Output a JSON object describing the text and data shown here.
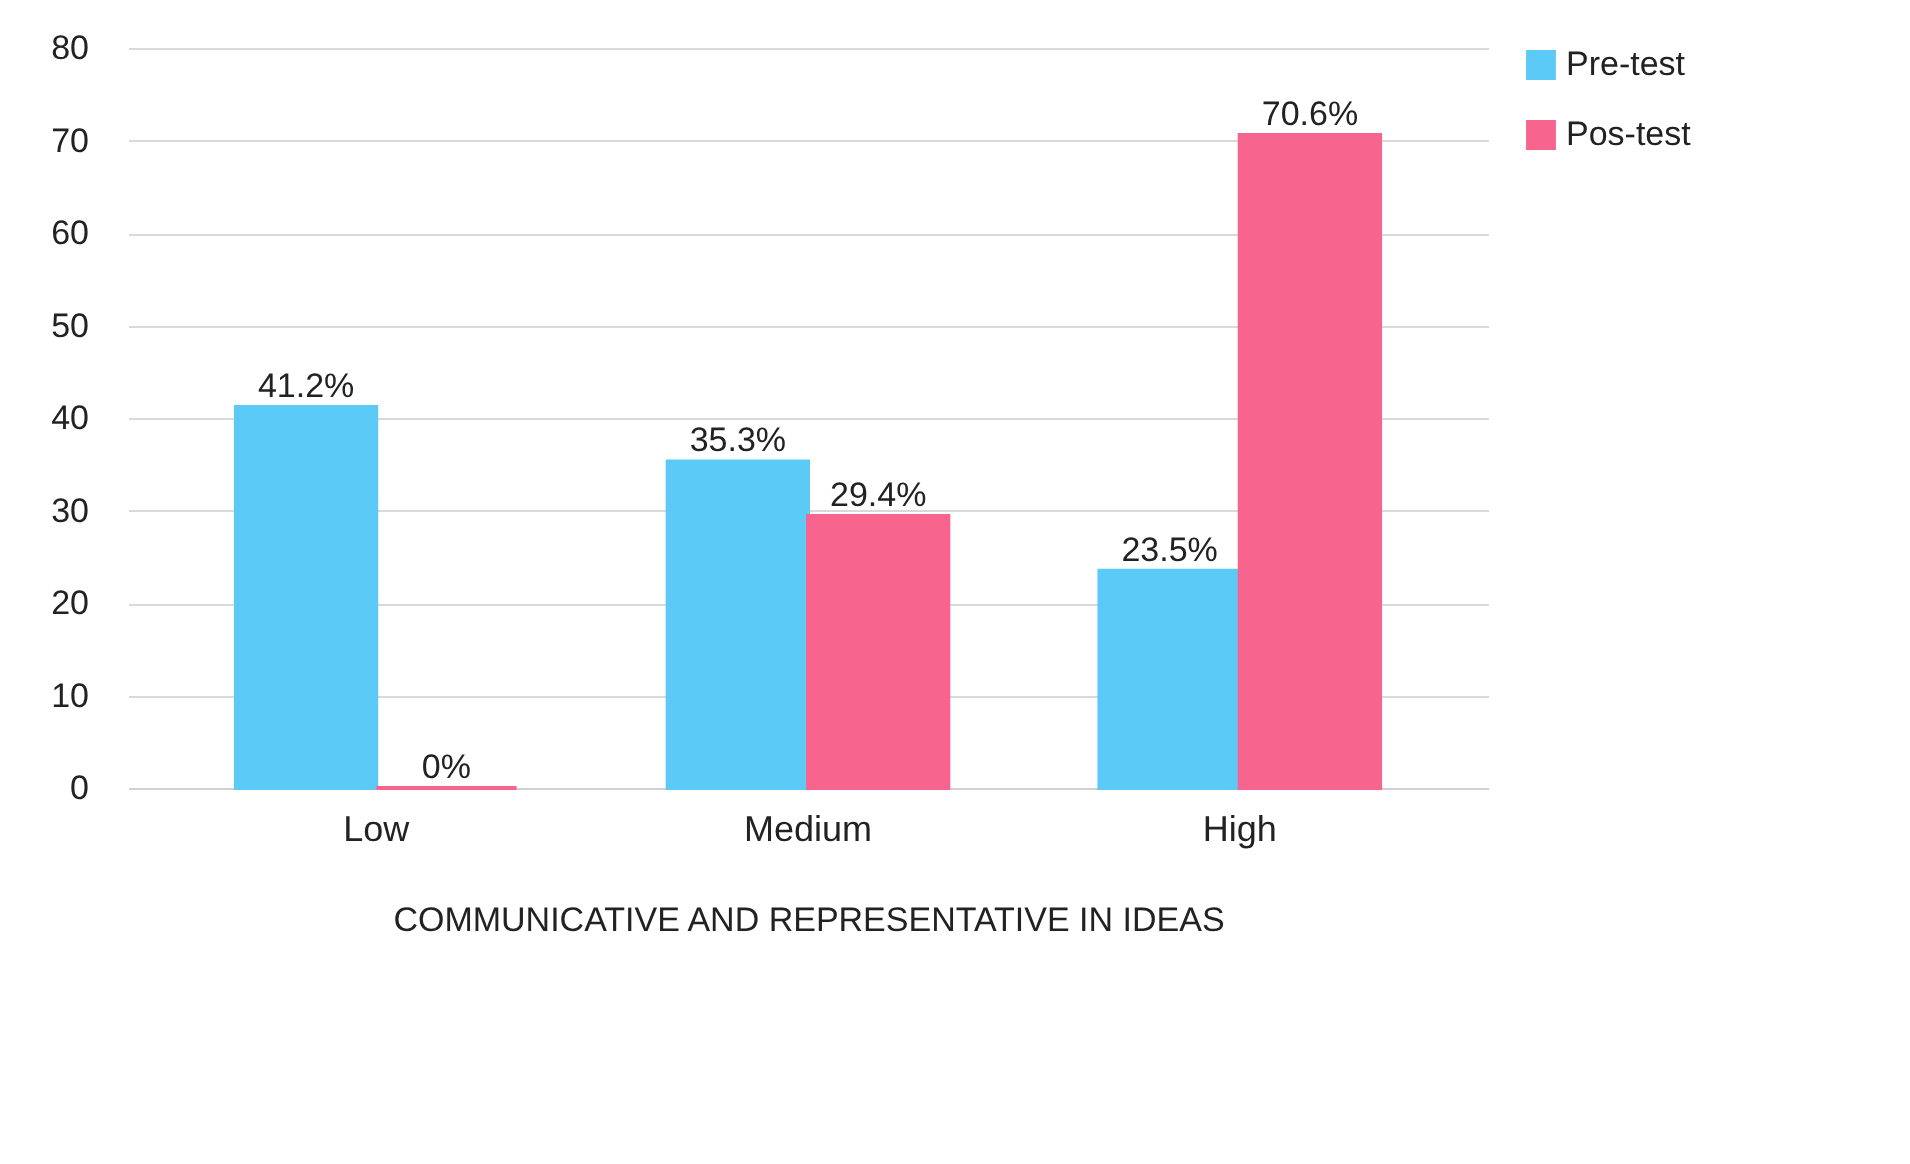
{
  "chart_data": {
    "type": "bar",
    "xlabel": "COMMUNICATIVE AND REPRESENTATIVE IN IDEAS",
    "categories": [
      "Low",
      "Medium",
      "High"
    ],
    "series": [
      {
        "name": "Pre-test",
        "color": "#5bcaf7",
        "values": [
          41.2,
          35.3,
          23.5
        ],
        "value_labels": [
          "41.2%",
          "35.3%",
          "23.5%"
        ]
      },
      {
        "name": "Pos-test",
        "color": "#f7658f",
        "values": [
          0,
          29.4,
          70.6
        ],
        "value_labels": [
          "0%",
          "29.4%",
          "70.6%"
        ]
      }
    ],
    "ylim": [
      0,
      80
    ],
    "yticks": [
      0,
      10,
      20,
      30,
      40,
      50,
      60,
      70,
      80
    ],
    "grid": "y",
    "legend": "right"
  }
}
